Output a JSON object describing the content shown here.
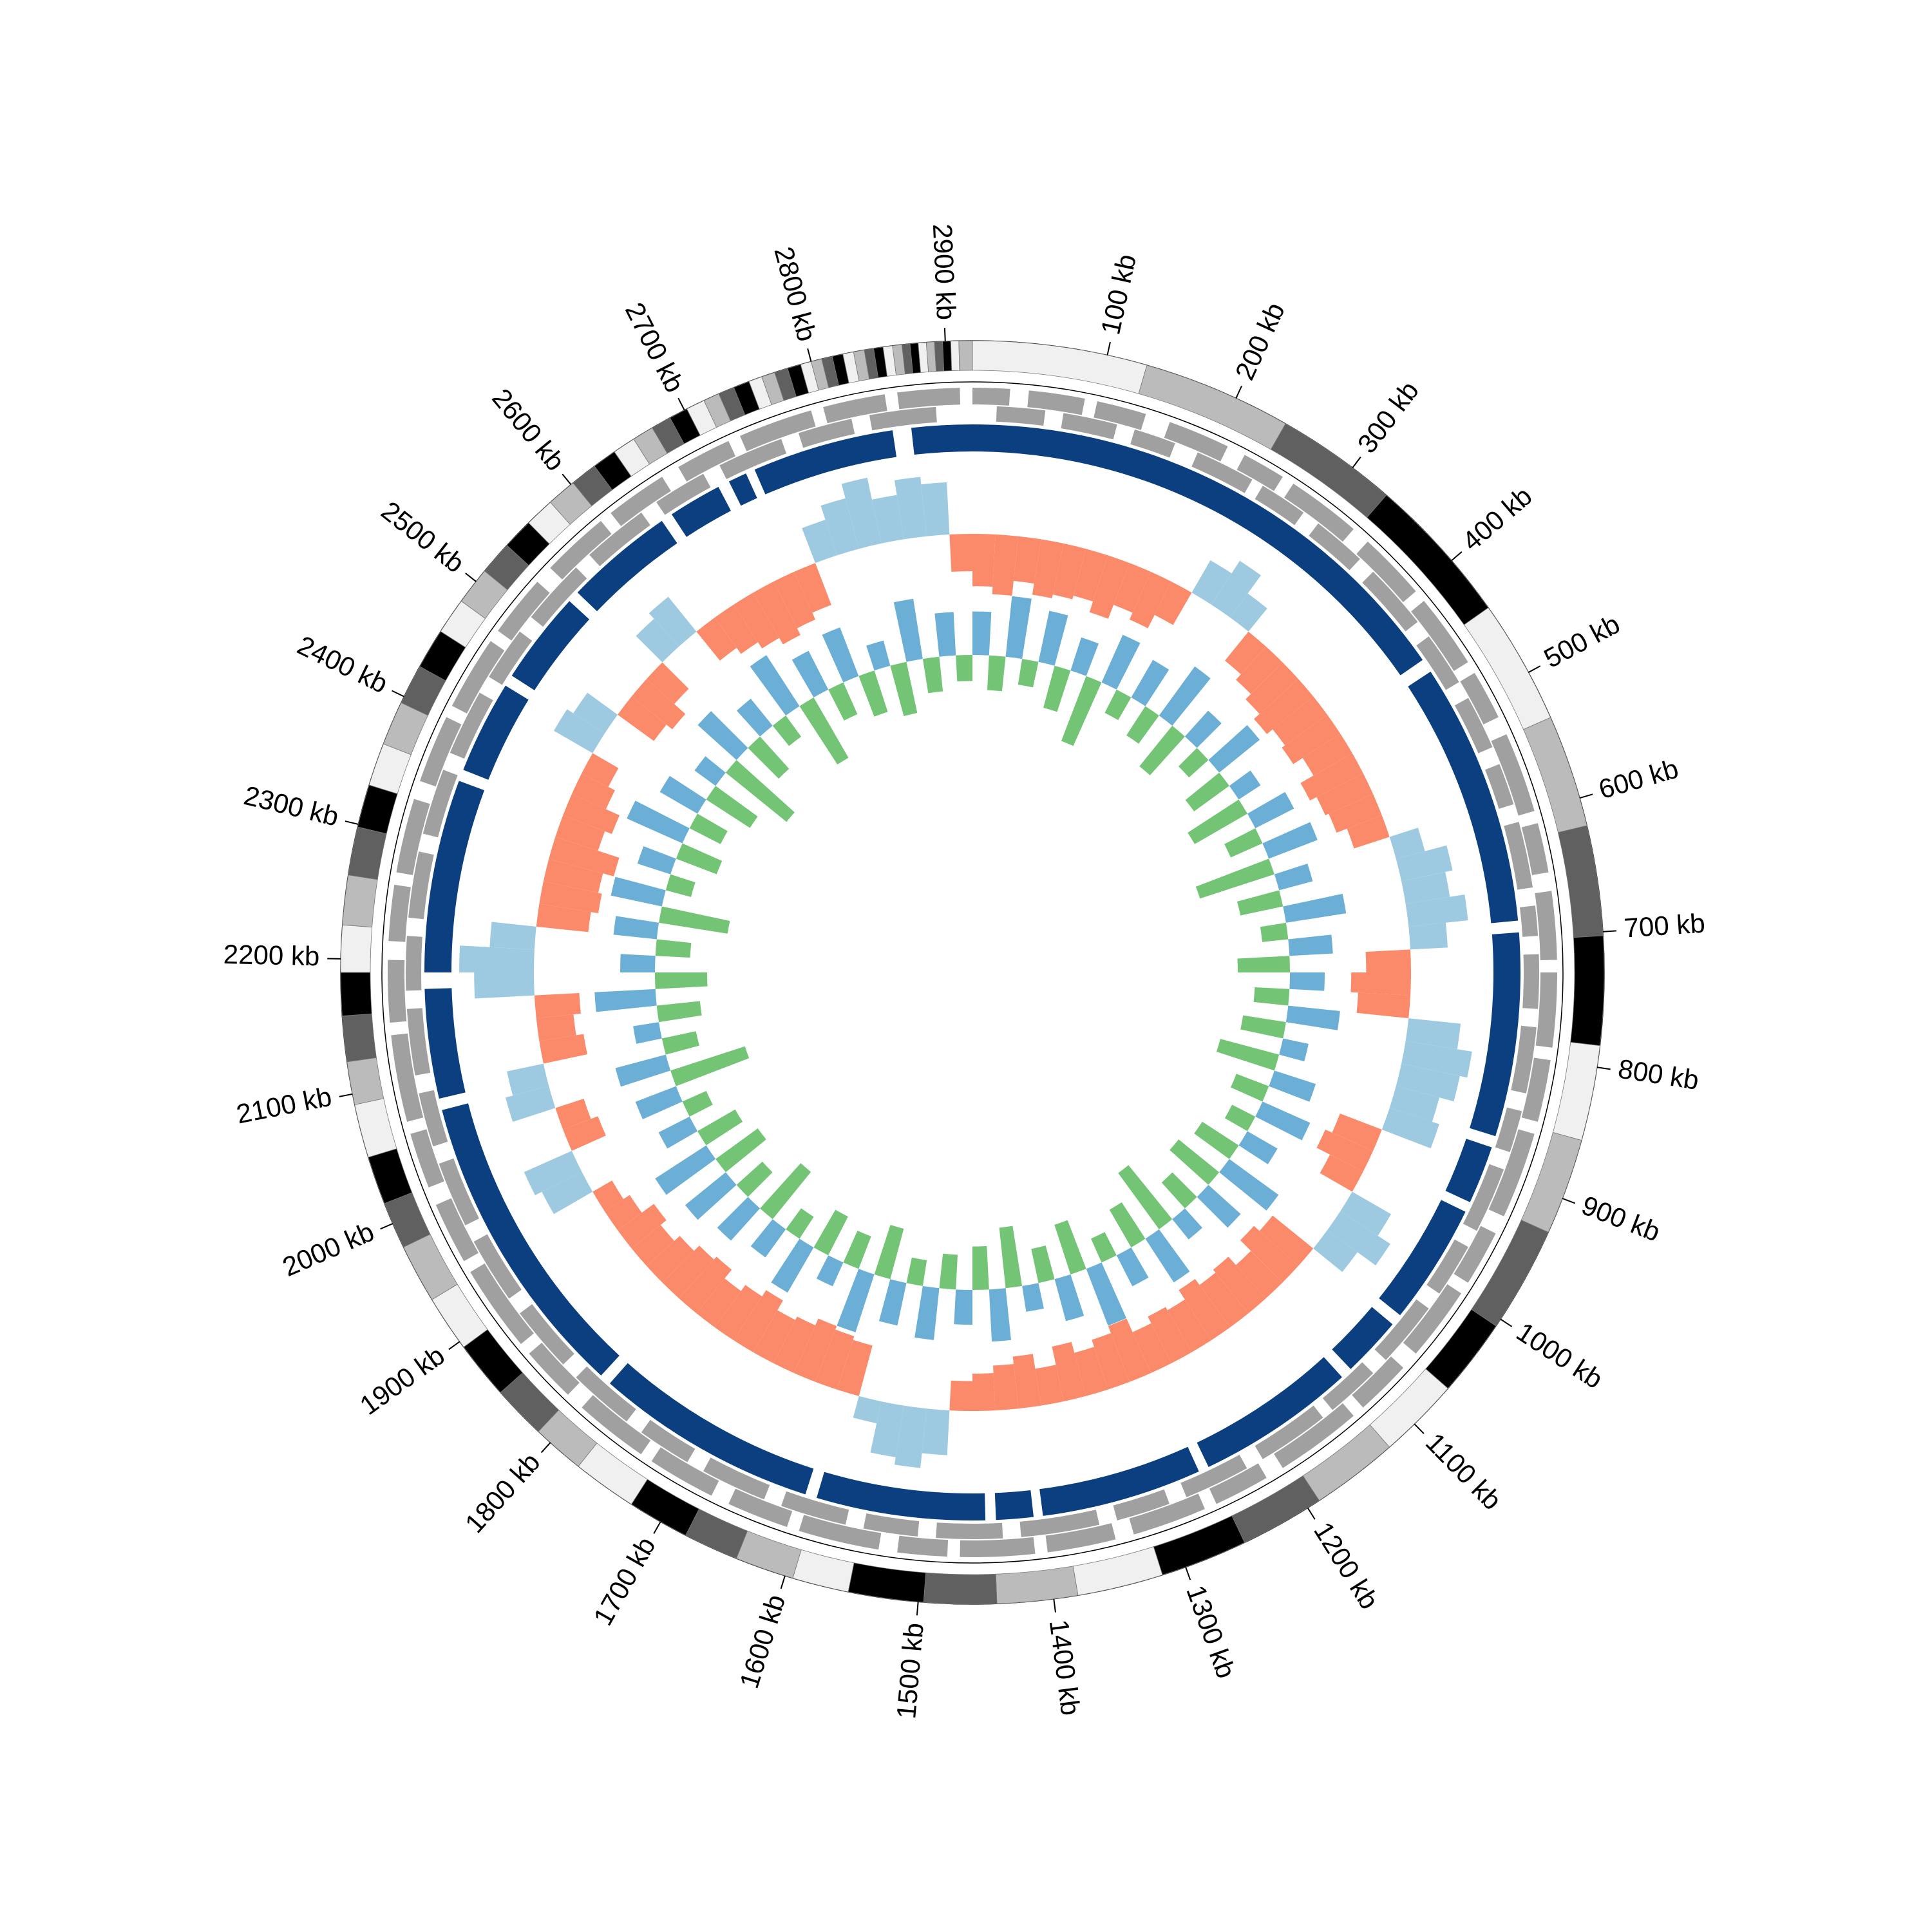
{
  "chart_data": {
    "type": "circos",
    "xlim": [
      0,
      2920
    ],
    "xticks": [
      {
        "value": 100,
        "label": "100 kb"
      },
      {
        "value": 200,
        "label": "200 kb"
      },
      {
        "value": 300,
        "label": "300 kb"
      },
      {
        "value": 400,
        "label": "400 kb"
      },
      {
        "value": 500,
        "label": "500 kb"
      },
      {
        "value": 600,
        "label": "600 kb"
      },
      {
        "value": 700,
        "label": "700 kb"
      },
      {
        "value": 800,
        "label": "800 kb"
      },
      {
        "value": 900,
        "label": "900 kb"
      },
      {
        "value": 1000,
        "label": "1000 kb"
      },
      {
        "value": 1100,
        "label": "1100 kb"
      },
      {
        "value": 1200,
        "label": "1200 kb"
      },
      {
        "value": 1300,
        "label": "1300 kb"
      },
      {
        "value": 1400,
        "label": "1400 kb"
      },
      {
        "value": 1500,
        "label": "1500 kb"
      },
      {
        "value": 1600,
        "label": "1600 kb"
      },
      {
        "value": 1700,
        "label": "1700 kb"
      },
      {
        "value": 1800,
        "label": "1800 kb"
      },
      {
        "value": 1900,
        "label": "1900 kb"
      },
      {
        "value": 2000,
        "label": "2000 kb"
      },
      {
        "value": 2100,
        "label": "2100 kb"
      },
      {
        "value": 2200,
        "label": "2200 kb"
      },
      {
        "value": 2300,
        "label": "2300 kb"
      },
      {
        "value": 2400,
        "label": "2400 kb"
      },
      {
        "value": 2500,
        "label": "2500 kb"
      },
      {
        "value": 2600,
        "label": "2600 kb"
      },
      {
        "value": 2700,
        "label": "2700 kb"
      },
      {
        "value": 2800,
        "label": "2800 kb"
      },
      {
        "value": 2900,
        "label": "2900 kb"
      }
    ],
    "band_colors": [
      "#f0f0f0",
      "#bbbbbb",
      "#606060",
      "#000000"
    ],
    "contig_ends": [
      130,
      241,
      332,
      444,
      537,
      621,
      703,
      784,
      855,
      927,
      1006,
      1064,
      1125,
      1190,
      1253,
      1318,
      1382,
      1442,
      1496,
      1552,
      1594,
      1638,
      1679,
      1725,
      1773,
      1812,
      1852,
      1895,
      1937,
      1981,
      2016,
      2052,
      2092,
      2124,
      2158,
      2190,
      2225,
      2262,
      2298,
      2330,
      2362,
      2395,
      2425,
      2455,
      2482,
      2510,
      2535,
      2558,
      2580,
      2602,
      2622,
      2640,
      2657,
      2673,
      2688,
      2702,
      2716,
      2728,
      2740,
      2752,
      2762,
      2772,
      2782,
      2792,
      2800,
      2808,
      2816,
      2824,
      2832,
      2840,
      2847,
      2854,
      2861,
      2868,
      2874,
      2880,
      2886,
      2892,
      2898,
      2904,
      2910,
      2920
    ],
    "genes": {
      "color": "#a0a0a0",
      "forward": [
        [
          0,
          30
        ],
        [
          45,
          90
        ],
        [
          100,
          140
        ],
        [
          160,
          210
        ],
        [
          225,
          260
        ],
        [
          270,
          330
        ],
        [
          345,
          400
        ],
        [
          410,
          470
        ],
        [
          480,
          520
        ],
        [
          535,
          600
        ],
        [
          610,
          650
        ],
        [
          665,
          720
        ],
        [
          730,
          790
        ],
        [
          800,
          850
        ],
        [
          860,
          930
        ],
        [
          945,
          990
        ],
        [
          1000,
          1060
        ],
        [
          1075,
          1120
        ],
        [
          1130,
          1200
        ],
        [
          1215,
          1260
        ],
        [
          1270,
          1330
        ],
        [
          1345,
          1400
        ],
        [
          1410,
          1470
        ],
        [
          1480,
          1520
        ],
        [
          1535,
          1600
        ],
        [
          1610,
          1660
        ],
        [
          1675,
          1730
        ],
        [
          1740,
          1800
        ],
        [
          1815,
          1860
        ],
        [
          1870,
          1940
        ],
        [
          1950,
          2000
        ],
        [
          2015,
          2060
        ],
        [
          2070,
          2140
        ],
        [
          2150,
          2200
        ],
        [
          2215,
          2260
        ],
        [
          2270,
          2330
        ],
        [
          2345,
          2400
        ],
        [
          2410,
          2470
        ],
        [
          2480,
          2530
        ],
        [
          2545,
          2600
        ],
        [
          2610,
          2660
        ],
        [
          2675,
          2720
        ],
        [
          2730,
          2790
        ],
        [
          2800,
          2850
        ],
        [
          2860,
          2910
        ]
      ],
      "reverse": [
        [
          20,
          60
        ],
        [
          75,
          120
        ],
        [
          135,
          170
        ],
        [
          190,
          240
        ],
        [
          250,
          290
        ],
        [
          305,
          350
        ],
        [
          365,
          420
        ],
        [
          435,
          480
        ],
        [
          495,
          540
        ],
        [
          555,
          590
        ],
        [
          605,
          660
        ],
        [
          675,
          700
        ],
        [
          715,
          760
        ],
        [
          775,
          830
        ],
        [
          845,
          880
        ],
        [
          895,
          950
        ],
        [
          965,
          1010
        ],
        [
          1025,
          1080
        ],
        [
          1095,
          1140
        ],
        [
          1150,
          1210
        ],
        [
          1225,
          1280
        ],
        [
          1295,
          1340
        ],
        [
          1355,
          1420
        ],
        [
          1435,
          1490
        ],
        [
          1505,
          1550
        ],
        [
          1565,
          1620
        ],
        [
          1635,
          1690
        ],
        [
          1705,
          1750
        ],
        [
          1765,
          1820
        ],
        [
          1835,
          1890
        ],
        [
          1905,
          1960
        ],
        [
          1975,
          2030
        ],
        [
          2045,
          2090
        ],
        [
          2105,
          2160
        ],
        [
          2175,
          2220
        ],
        [
          2235,
          2290
        ],
        [
          2305,
          2360
        ],
        [
          2375,
          2430
        ],
        [
          2445,
          2490
        ],
        [
          2505,
          2560
        ],
        [
          2575,
          2630
        ],
        [
          2645,
          2690
        ],
        [
          2705,
          2760
        ],
        [
          2775,
          2820
        ],
        [
          2835,
          2890
        ]
      ]
    },
    "contig_ring": {
      "color": "#0b3f80",
      "segments": [
        [
          0,
          448
        ],
        [
          460,
          686
        ],
        [
          696,
          871
        ],
        [
          881,
          931
        ],
        [
          940,
          1044
        ],
        [
          1054,
          1106
        ],
        [
          1116,
          1253
        ],
        [
          1262,
          1400
        ],
        [
          1408,
          1440
        ],
        [
          1449,
          1594
        ],
        [
          1604,
          1796
        ],
        [
          1806,
          2072
        ],
        [
          2082,
          2176
        ],
        [
          2190,
          2356
        ],
        [
          2366,
          2446
        ],
        [
          2456,
          2536
        ],
        [
          2546,
          2640
        ],
        [
          2650,
          2696
        ],
        [
          2706,
          2722
        ],
        [
          2730,
          2852
        ],
        [
          2868,
          2920
        ]
      ]
    },
    "ylim": [
      -1,
      1
    ],
    "series": [
      {
        "color_positive": "#9ecae1",
        "color_negative": "#fb8a6a",
        "values": [
          -0.7,
          -0.8,
          -0.6,
          -0.75,
          -0.7,
          -0.65,
          -0.8,
          -0.6,
          -0.7,
          -0.5,
          0.5,
          0.7,
          0.4,
          -0.5,
          -0.6,
          -0.7,
          -0.8,
          -0.7,
          -0.75,
          -0.6,
          -0.8,
          -0.7,
          -0.65,
          -0.5,
          0.4,
          0.7,
          0.6,
          0.8,
          0.5,
          -0.6,
          -0.8,
          -0.7,
          0.7,
          0.9,
          0.8,
          0.6,
          0.7,
          -0.6,
          -0.7,
          -0.5,
          0.6,
          0.8,
          0.5,
          -0.7,
          -0.8,
          -0.6,
          -0.75,
          -0.7,
          -0.8,
          -0.65,
          -0.7,
          -0.6,
          -0.8,
          -0.7,
          -0.6,
          -0.75,
          -0.5,
          -0.7,
          -0.6,
          -0.5,
          -0.4,
          0.6,
          0.8,
          0.7,
          0.3,
          -0.7,
          -0.75,
          -0.8,
          -0.7,
          -0.65,
          -0.8,
          -0.7,
          -0.6,
          -0.75,
          -0.7,
          -0.6,
          -0.5,
          -0.6,
          -0.4,
          -0.3,
          0.6,
          0.7,
          -0.5,
          -0.4,
          0.6,
          0.5,
          -0.6,
          -0.5,
          -0.6,
          0.8,
          1.0,
          0.6,
          -0.7,
          -0.8,
          -0.75,
          -0.9,
          -0.6,
          -0.7,
          -0.5,
          -0.4,
          0.6,
          0.5,
          -0.6,
          -0.7,
          -0.5,
          0.5,
          0.6,
          -0.5,
          -0.6,
          -0.7,
          -0.8,
          -0.7,
          -0.6,
          0.5,
          0.7,
          0.9,
          0.6,
          0.8,
          0.7,
          -0.5
        ]
      },
      {
        "color_positive": "#6baed6",
        "color_negative": "#74c476",
        "values": [
          0.5,
          -0.4,
          0.7,
          -0.3,
          0.6,
          -0.5,
          0.4,
          -0.8,
          0.6,
          -0.3,
          0.5,
          -0.4,
          0.7,
          -0.6,
          0.4,
          -0.3,
          0.6,
          -0.5,
          0.3,
          -0.7,
          0.5,
          -0.4,
          0.6,
          -0.9,
          0.4,
          -0.5,
          0.7,
          -0.3,
          0.5,
          -0.6,
          0.4,
          -0.4,
          0.6,
          -0.5,
          0.3,
          -0.7,
          0.5,
          -0.4,
          0.6,
          -0.3,
          0.4,
          -0.5,
          0.7,
          -0.6,
          0.5,
          -0.4,
          0.3,
          -0.8,
          0.6,
          -0.5,
          0.4,
          -0.3,
          0.7,
          -0.6,
          0.5,
          -0.4,
          0.3,
          -0.7,
          0.6,
          -0.5,
          0.4,
          -0.4,
          0.6,
          -0.3,
          0.5,
          -0.6,
          0.7,
          -0.4,
          0.3,
          -0.5,
          0.6,
          -0.3,
          0.4,
          -0.7,
          0.5,
          -0.4,
          0.6,
          -0.6,
          0.7,
          -0.5,
          0.4,
          -0.3,
          0.5,
          -0.9,
          0.6,
          -0.4,
          0.3,
          -0.5,
          0.7,
          -0.6,
          0.4,
          -0.4,
          0.5,
          -0.8,
          0.6,
          -0.3,
          0.4,
          -0.5,
          0.7,
          -0.4,
          0.5,
          -0.6,
          0.3,
          -0.9,
          0.6,
          -0.5,
          0.4,
          -0.3,
          0.7,
          -0.8,
          0.5,
          -0.4,
          0.6,
          -0.5,
          0.3,
          -0.6,
          0.7,
          -0.4,
          0.5,
          -0.3
        ]
      }
    ]
  }
}
